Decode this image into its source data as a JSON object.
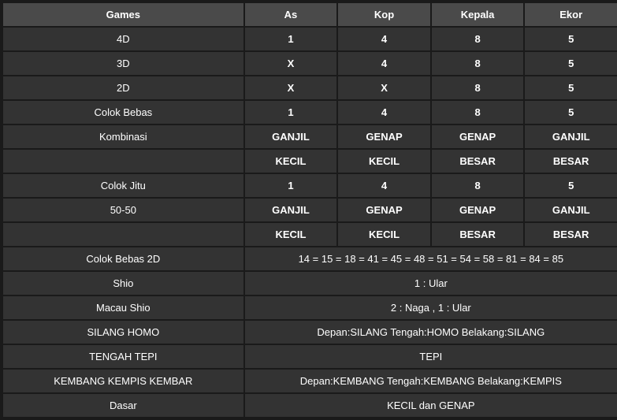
{
  "header": {
    "games": "Games",
    "as": "As",
    "kop": "Kop",
    "kepala": "Kepala",
    "ekor": "Ekor"
  },
  "rows4col": [
    {
      "label": "4D",
      "as": "1",
      "kop": "4",
      "kepala": "8",
      "ekor": "5",
      "bold": true
    },
    {
      "label": "3D",
      "as": "X",
      "kop": "4",
      "kepala": "8",
      "ekor": "5",
      "bold": true
    },
    {
      "label": "2D",
      "as": "X",
      "kop": "X",
      "kepala": "8",
      "ekor": "5",
      "bold": true
    },
    {
      "label": "Colok Bebas",
      "as": "1",
      "kop": "4",
      "kepala": "8",
      "ekor": "5",
      "bold": true
    },
    {
      "label": "Kombinasi",
      "as": "GANJIL",
      "kop": "GENAP",
      "kepala": "GENAP",
      "ekor": "GANJIL",
      "bold": true
    },
    {
      "label": "",
      "as": "KECIL",
      "kop": "KECIL",
      "kepala": "BESAR",
      "ekor": "BESAR",
      "bold": true
    },
    {
      "label": "Colok Jitu",
      "as": "1",
      "kop": "4",
      "kepala": "8",
      "ekor": "5",
      "bold": true
    },
    {
      "label": "50-50",
      "as": "GANJIL",
      "kop": "GENAP",
      "kepala": "GENAP",
      "ekor": "GANJIL",
      "bold": true
    },
    {
      "label": "",
      "as": "KECIL",
      "kop": "KECIL",
      "kepala": "BESAR",
      "ekor": "BESAR",
      "bold": true
    }
  ],
  "rowsSpan": [
    {
      "label": "Colok Bebas 2D",
      "value": "14 = 15 = 18 = 41 = 45 = 48 = 51 = 54 = 58 = 81 = 84 = 85"
    },
    {
      "label": "Shio",
      "value": "1 : Ular"
    },
    {
      "label": "Macau Shio",
      "value": "2 : Naga , 1 : Ular"
    },
    {
      "label": "SILANG HOMO",
      "value": "Depan:SILANG Tengah:HOMO Belakang:SILANG"
    },
    {
      "label": "TENGAH TEPI",
      "value": "TEPI"
    },
    {
      "label": "KEMBANG KEMPIS KEMBAR",
      "value": "Depan:KEMBANG Tengah:KEMBANG Belakang:KEMPIS"
    },
    {
      "label": "Dasar",
      "value": "KECIL dan GENAP"
    }
  ],
  "style": {
    "header_bg": "#4a4a4a",
    "cell_bg": "#333333",
    "page_bg": "#1a1a1a",
    "text_color": "#ffffff",
    "font_size": 13
  }
}
